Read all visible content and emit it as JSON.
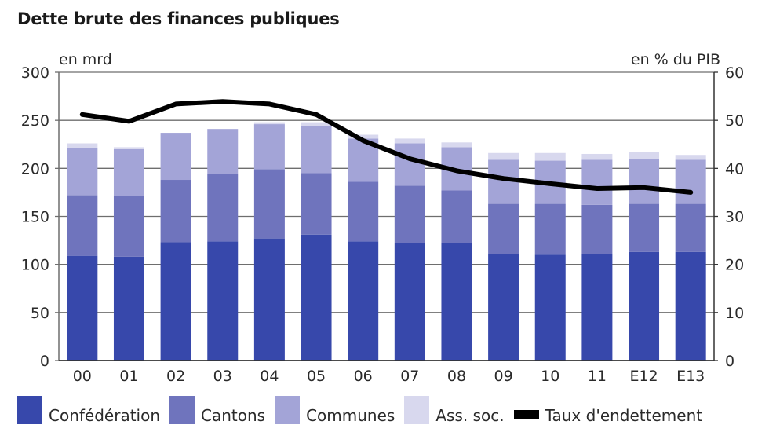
{
  "chart_data": {
    "type": "bar",
    "stacked": true,
    "title": "Dette brute des finances publiques",
    "ylabel": "en mrd",
    "y2label": "en % du PIB",
    "ylim": [
      0,
      300
    ],
    "y2lim": [
      0,
      60
    ],
    "yticks": [
      0,
      50,
      100,
      150,
      200,
      250,
      300
    ],
    "y2ticks": [
      0,
      10,
      20,
      30,
      40,
      50,
      60
    ],
    "grid": true,
    "legend_position": "bottom",
    "categories": [
      "00",
      "01",
      "02",
      "03",
      "04",
      "05",
      "06",
      "07",
      "08",
      "09",
      "10",
      "11",
      "E12",
      "E13"
    ],
    "series": [
      {
        "name": "Confédération",
        "color": "#3748ab",
        "values": [
          109,
          108,
          123,
          124,
          127,
          131,
          124,
          122,
          122,
          111,
          110,
          111,
          113,
          113
        ]
      },
      {
        "name": "Cantons",
        "color": "#6f74bd",
        "values": [
          63,
          63,
          65,
          70,
          72,
          64,
          62,
          60,
          55,
          52,
          53,
          51,
          50,
          50
        ]
      },
      {
        "name": "Communes",
        "color": "#a3a4d7",
        "values": [
          49,
          49,
          49,
          47,
          47,
          49,
          45,
          44,
          45,
          46,
          45,
          47,
          47,
          46
        ]
      },
      {
        "name": "Ass. soc.",
        "color": "#d8d8ee",
        "values": [
          5,
          2,
          0,
          0,
          2,
          4,
          4,
          5,
          5,
          7,
          8,
          6,
          7,
          5
        ]
      }
    ],
    "line_series": {
      "name": "Taux d'endettement",
      "color": "#000000",
      "axis": "right",
      "values": [
        51.2,
        49.8,
        53.4,
        53.9,
        53.4,
        51.2,
        45.8,
        42.0,
        39.5,
        37.9,
        36.8,
        35.8,
        36.0,
        35.0
      ]
    }
  }
}
